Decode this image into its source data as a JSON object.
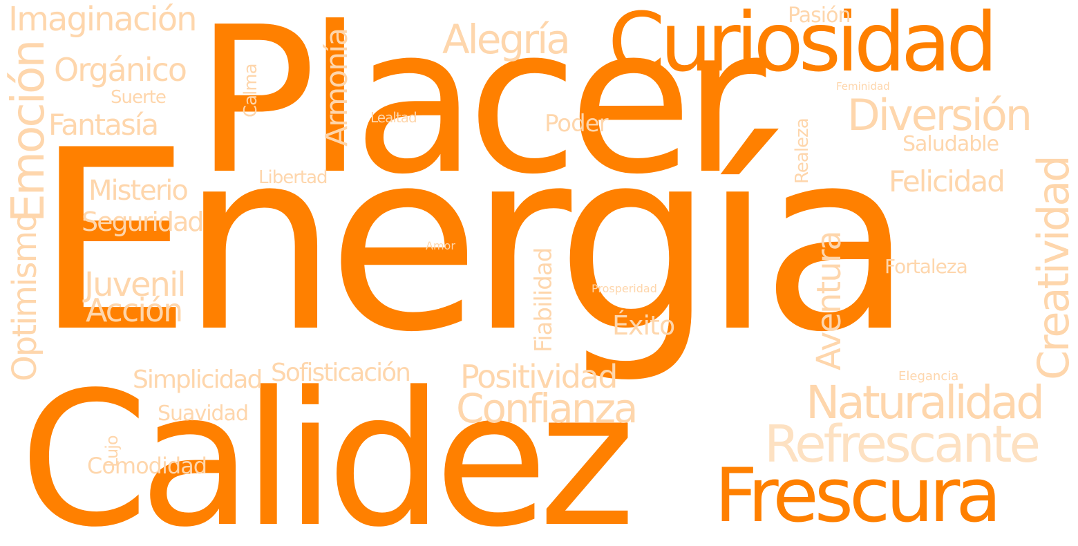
{
  "colors": {
    "primary": "#ff8000",
    "secondary": "#fed6ac"
  },
  "words": {
    "energia": "Energía",
    "placer": "Placer",
    "calidez": "Calidez",
    "curiosidad": "Curiosidad",
    "frescura": "Frescura",
    "alegria": "Alegría",
    "diversion": "Diversión",
    "naturalidad": "Naturalidad",
    "refrescante": "Refrescante",
    "confianza": "Confianza",
    "positividad": "Positividad",
    "creatividad": "Creatividad",
    "aventura": "Aventura",
    "emocion": "Emoción",
    "imaginacion": "Imaginación",
    "organico": "Orgánico",
    "fantasia": "Fantasía",
    "misterio": "Misterio",
    "seguridad": "Seguridad",
    "juvenil": "Juvenil",
    "accion": "Acción",
    "optimismo": "Optimismo",
    "felicidad": "Felicidad",
    "saludable": "Saludable",
    "fortaleza": "Fortaleza",
    "armonia": "Armonía",
    "suerte": "Suerte",
    "calma": "Calma",
    "lealtad": "Lealtad",
    "poder": "Poder",
    "libertad": "Libertad",
    "amor": "Amor",
    "prosperidad": "Prosperidad",
    "fiabilidad": "Fiabilidad",
    "exito": "Éxito",
    "simplicidad": "Simplicidad",
    "sofisticacion": "Sofisticación",
    "suavidad": "Suavidad",
    "lujo": "Lujo",
    "comodidad": "Comodidad",
    "pasion": "Pasión",
    "feminidad": "Feminidad",
    "realeza": "Realeza",
    "elegancia": "Elegancia"
  }
}
